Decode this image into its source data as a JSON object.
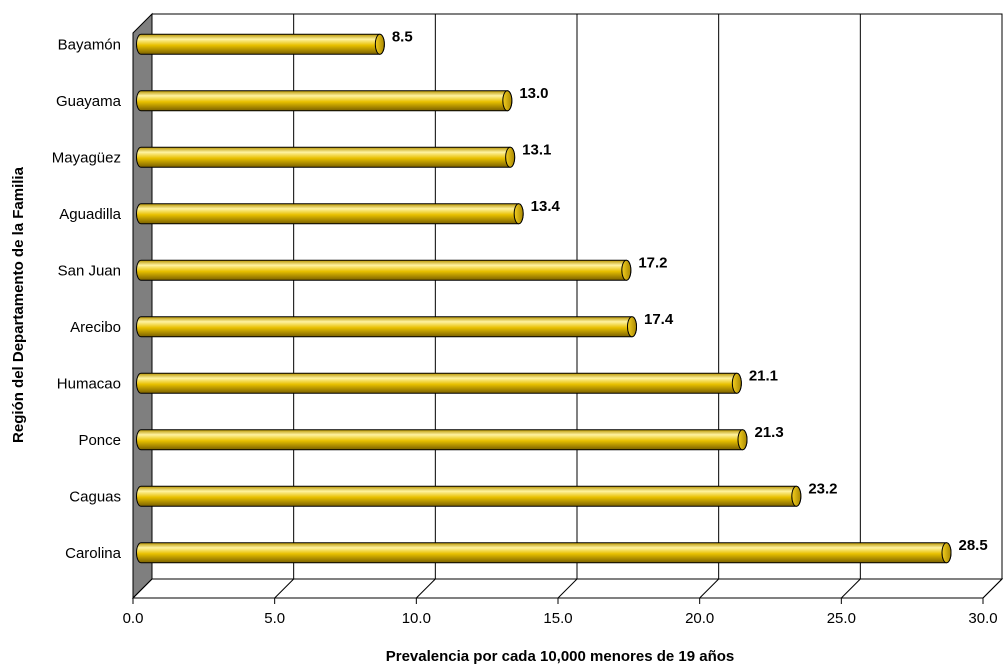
{
  "chart_data": {
    "type": "bar",
    "orientation": "horizontal",
    "categories": [
      "Bayamón",
      "Guayama",
      "Mayagüez",
      "Aguadilla",
      "San Juan",
      "Arecibo",
      "Humacao",
      "Ponce",
      "Caguas",
      "Carolina"
    ],
    "values": [
      8.5,
      13.0,
      13.1,
      13.4,
      17.2,
      17.4,
      21.1,
      21.3,
      23.2,
      28.5
    ],
    "value_labels": [
      "8.5",
      "13.0",
      "13.1",
      "13.4",
      "17.2",
      "17.4",
      "21.1",
      "21.3",
      "23.2",
      "28.5"
    ],
    "xlabel": "Prevalencia por cada 10,000 menores de 19 años",
    "ylabel": "Región del Departamento de la Familia",
    "xlim": [
      0,
      30
    ],
    "xticks": [
      "0.0",
      "5.0",
      "10.0",
      "15.0",
      "20.0",
      "25.0",
      "30.0"
    ],
    "grid": "vertical",
    "legend": "none"
  },
  "colors": {
    "bar_fill": "#e8c000",
    "bar_highlight": "#fff3a0",
    "bar_shadow": "#8a6e00",
    "wall": "#7f7f7f",
    "gridline": "#000000"
  }
}
